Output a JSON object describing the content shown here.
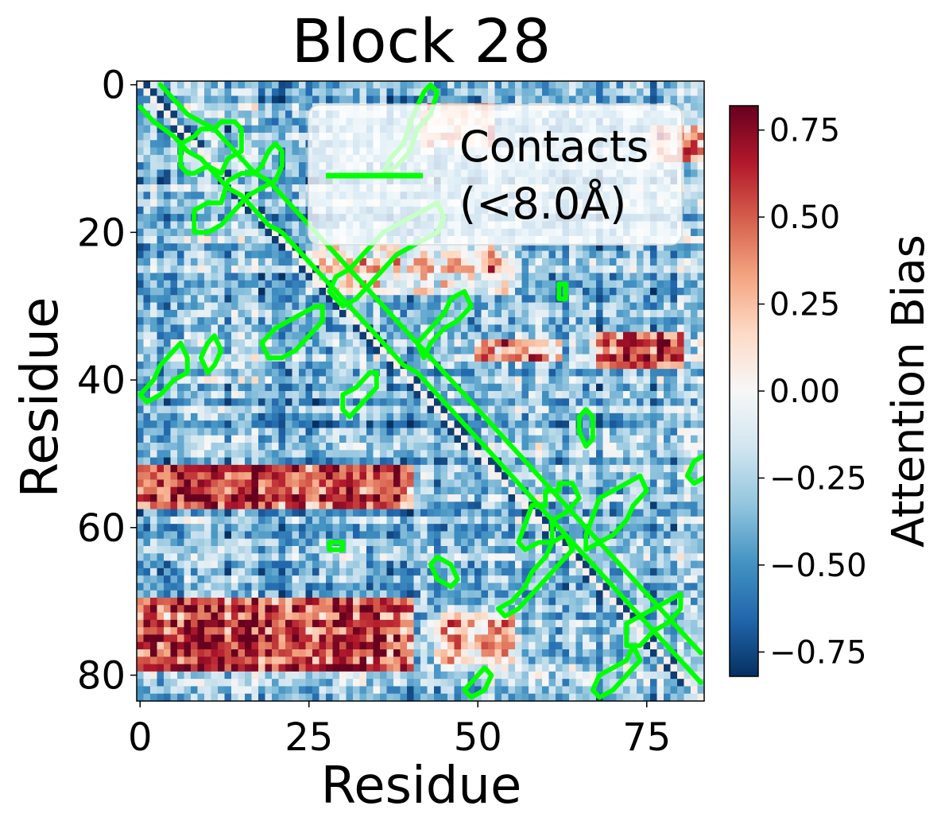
{
  "chart_data": {
    "type": "heatmap",
    "title": "Block 28",
    "xlabel": "Residue",
    "ylabel": "Residue",
    "n": 84,
    "x_ticks": [
      0,
      25,
      50,
      75
    ],
    "y_ticks": [
      0,
      20,
      40,
      60,
      80
    ],
    "x_tick_labels": [
      "0",
      "25",
      "50",
      "75"
    ],
    "y_tick_labels": [
      "0",
      "20",
      "40",
      "60",
      "80"
    ],
    "colorbar": {
      "label": "Attention Bias",
      "colormap": "RdBu_r",
      "vmin": -0.82,
      "vmax": 0.82,
      "ticks": [
        0.75,
        0.5,
        0.25,
        0.0,
        -0.25,
        -0.5,
        -0.75
      ],
      "tick_labels": [
        "0.75",
        "0.50",
        "0.25",
        "0.00",
        "−0.25",
        "−0.50",
        "−0.75"
      ]
    },
    "legend": {
      "placement": "top-right",
      "entries": [
        {
          "label_line1": "Contacts",
          "label_line2": "(<8.0Å)",
          "color": "#00ff00"
        }
      ]
    },
    "contact_color": "#00ff00",
    "contact_contours": [
      [
        [
          0,
          3
        ],
        [
          2,
          5
        ],
        [
          5,
          7
        ],
        [
          7,
          9
        ],
        [
          9,
          10
        ],
        [
          11,
          12
        ],
        [
          13,
          14
        ],
        [
          15,
          15
        ],
        [
          17,
          17
        ],
        [
          19,
          19
        ],
        [
          21,
          20
        ],
        [
          23,
          22
        ],
        [
          25,
          24
        ],
        [
          27,
          26
        ],
        [
          29,
          28
        ],
        [
          31,
          30
        ],
        [
          33,
          32
        ],
        [
          35,
          34
        ],
        [
          37,
          36
        ],
        [
          39,
          38
        ],
        [
          41,
          39
        ],
        [
          43,
          41
        ],
        [
          45,
          43
        ],
        [
          47,
          45
        ],
        [
          49,
          47
        ],
        [
          51,
          49
        ],
        [
          53,
          51
        ],
        [
          55,
          53
        ],
        [
          57,
          55
        ],
        [
          59,
          57
        ],
        [
          61,
          59
        ],
        [
          63,
          61
        ],
        [
          65,
          63
        ],
        [
          67,
          65
        ],
        [
          69,
          67
        ],
        [
          71,
          69
        ],
        [
          73,
          71
        ],
        [
          75,
          73
        ],
        [
          77,
          75
        ],
        [
          79,
          77
        ],
        [
          81,
          79
        ],
        [
          83,
          81
        ]
      ],
      [
        [
          3,
          0
        ],
        [
          5,
          2
        ],
        [
          7,
          4
        ],
        [
          9,
          5
        ],
        [
          11,
          6
        ],
        [
          13,
          8
        ],
        [
          15,
          10
        ],
        [
          17,
          12
        ],
        [
          19,
          13
        ],
        [
          21,
          15
        ],
        [
          23,
          17
        ],
        [
          25,
          19
        ],
        [
          27,
          21
        ],
        [
          29,
          23
        ],
        [
          31,
          25
        ],
        [
          33,
          27
        ],
        [
          35,
          29
        ],
        [
          37,
          31
        ],
        [
          39,
          33
        ],
        [
          41,
          35
        ],
        [
          43,
          37
        ],
        [
          45,
          39
        ],
        [
          47,
          41
        ],
        [
          49,
          43
        ],
        [
          51,
          45
        ],
        [
          53,
          47
        ],
        [
          55,
          49
        ],
        [
          57,
          51
        ],
        [
          59,
          53
        ],
        [
          61,
          55
        ],
        [
          63,
          57
        ],
        [
          65,
          59
        ],
        [
          67,
          61
        ],
        [
          69,
          63
        ],
        [
          71,
          65
        ],
        [
          73,
          67
        ],
        [
          75,
          69
        ],
        [
          77,
          71
        ],
        [
          79,
          73
        ],
        [
          81,
          75
        ],
        [
          83,
          77
        ]
      ],
      [
        [
          6,
          11
        ],
        [
          6,
          8
        ],
        [
          8,
          7
        ],
        [
          9,
          6
        ],
        [
          11,
          6
        ],
        [
          12,
          5
        ],
        [
          14,
          5
        ],
        [
          15,
          6
        ],
        [
          15,
          9
        ],
        [
          13,
          10
        ],
        [
          12,
          12
        ],
        [
          10,
          11
        ],
        [
          8,
          12
        ],
        [
          7,
          12
        ]
      ],
      [
        [
          8,
          20
        ],
        [
          8,
          17
        ],
        [
          10,
          16
        ],
        [
          12,
          16
        ],
        [
          13,
          13
        ],
        [
          15,
          12
        ],
        [
          17,
          12
        ],
        [
          18,
          11
        ],
        [
          19,
          9
        ],
        [
          20,
          8
        ],
        [
          21,
          9
        ],
        [
          21,
          11
        ],
        [
          20,
          13
        ],
        [
          18,
          14
        ],
        [
          16,
          15
        ],
        [
          14,
          17
        ],
        [
          12,
          19
        ],
        [
          10,
          20
        ]
      ],
      [
        [
          28,
          28
        ],
        [
          29,
          26
        ],
        [
          31,
          25
        ],
        [
          32,
          24
        ],
        [
          34,
          22
        ],
        [
          36,
          20
        ],
        [
          38,
          19
        ],
        [
          40,
          18
        ],
        [
          42,
          17
        ],
        [
          44,
          16
        ],
        [
          45,
          18
        ],
        [
          44,
          20
        ],
        [
          42,
          21
        ],
        [
          40,
          22
        ],
        [
          38,
          23
        ],
        [
          36,
          25
        ],
        [
          34,
          27
        ],
        [
          32,
          29
        ],
        [
          30,
          30
        ]
      ],
      [
        [
          36,
          12
        ],
        [
          37,
          10
        ],
        [
          39,
          8
        ],
        [
          40,
          5
        ],
        [
          41,
          3
        ],
        [
          42,
          1
        ],
        [
          43,
          0
        ],
        [
          44,
          1
        ],
        [
          43,
          4
        ],
        [
          41,
          6
        ],
        [
          40,
          9
        ],
        [
          38,
          11
        ]
      ],
      [
        [
          18,
          35
        ],
        [
          20,
          33
        ],
        [
          22,
          32
        ],
        [
          24,
          31
        ],
        [
          26,
          30
        ],
        [
          27,
          30
        ],
        [
          27,
          32
        ],
        [
          25,
          34
        ],
        [
          23,
          36
        ],
        [
          21,
          37
        ],
        [
          19,
          37
        ]
      ],
      [
        [
          41,
          35
        ],
        [
          43,
          33
        ],
        [
          45,
          31
        ],
        [
          46,
          29
        ],
        [
          48,
          28
        ],
        [
          49,
          30
        ],
        [
          47,
          32
        ],
        [
          45,
          33
        ],
        [
          43,
          35
        ],
        [
          42,
          37
        ]
      ],
      [
        [
          30,
          44
        ],
        [
          30,
          42
        ],
        [
          32,
          41
        ],
        [
          34,
          39
        ],
        [
          35,
          39
        ],
        [
          35,
          41
        ],
        [
          33,
          43
        ],
        [
          31,
          45
        ]
      ],
      [
        [
          0,
          42
        ],
        [
          2,
          40
        ],
        [
          3,
          38
        ],
        [
          5,
          36
        ],
        [
          6,
          35
        ],
        [
          7,
          37
        ],
        [
          7,
          39
        ],
        [
          5,
          40
        ],
        [
          3,
          42
        ],
        [
          1,
          43
        ]
      ],
      [
        [
          9,
          37
        ],
        [
          10,
          35
        ],
        [
          11,
          34
        ],
        [
          12,
          36
        ],
        [
          11,
          38
        ],
        [
          10,
          39
        ]
      ],
      [
        [
          58,
          57
        ],
        [
          60,
          57
        ],
        [
          60,
          55
        ],
        [
          62,
          55
        ],
        [
          62,
          54
        ],
        [
          64,
          54
        ],
        [
          65,
          56
        ],
        [
          63,
          58
        ],
        [
          61,
          59
        ],
        [
          61,
          62
        ],
        [
          59,
          62
        ],
        [
          57,
          63
        ],
        [
          56,
          62
        ]
      ],
      [
        [
          68,
          56
        ],
        [
          70,
          55
        ],
        [
          72,
          54
        ],
        [
          74,
          53
        ],
        [
          75,
          55
        ],
        [
          73,
          57
        ],
        [
          72,
          59
        ],
        [
          70,
          61
        ],
        [
          68,
          62
        ],
        [
          66,
          63
        ],
        [
          66,
          61
        ]
      ],
      [
        [
          53,
          71
        ],
        [
          55,
          70
        ],
        [
          57,
          68
        ],
        [
          58,
          66
        ],
        [
          60,
          64
        ],
        [
          61,
          62
        ],
        [
          63,
          61
        ],
        [
          64,
          63
        ],
        [
          62,
          65
        ],
        [
          60,
          67
        ],
        [
          58,
          69
        ],
        [
          56,
          71
        ],
        [
          54,
          72
        ]
      ],
      [
        [
          72,
          73
        ],
        [
          74,
          72
        ],
        [
          76,
          71
        ],
        [
          78,
          70
        ],
        [
          80,
          69
        ],
        [
          80,
          71
        ],
        [
          78,
          73
        ],
        [
          76,
          74
        ],
        [
          74,
          76
        ],
        [
          72,
          76
        ]
      ],
      [
        [
          67,
          82
        ],
        [
          68,
          80
        ],
        [
          70,
          79
        ],
        [
          72,
          78
        ],
        [
          73,
          76
        ],
        [
          74,
          78
        ],
        [
          72,
          80
        ],
        [
          70,
          82
        ],
        [
          68,
          83
        ]
      ],
      [
        [
          48,
          82
        ],
        [
          50,
          80
        ],
        [
          51,
          79
        ],
        [
          52,
          80
        ],
        [
          51,
          82
        ],
        [
          49,
          83
        ]
      ],
      [
        [
          43,
          65
        ],
        [
          44,
          64
        ],
        [
          46,
          65
        ],
        [
          47,
          67
        ],
        [
          46,
          68
        ],
        [
          44,
          67
        ]
      ],
      [
        [
          65,
          45
        ],
        [
          66,
          44
        ],
        [
          67,
          45
        ],
        [
          67,
          48
        ],
        [
          66,
          49
        ],
        [
          65,
          47
        ]
      ],
      [
        [
          81,
          53
        ],
        [
          82,
          51
        ],
        [
          84,
          50
        ],
        [
          84,
          53
        ],
        [
          82,
          54
        ]
      ],
      [
        [
          62,
          27
        ],
        [
          63,
          27
        ],
        [
          63,
          29
        ],
        [
          62,
          29
        ]
      ],
      [
        [
          28,
          62
        ],
        [
          30,
          62
        ],
        [
          30,
          63
        ],
        [
          28,
          63
        ]
      ]
    ],
    "hot_spots": [
      {
        "x": [
          0,
          40
        ],
        "y": [
          52,
          57
        ],
        "value": 0.5
      },
      {
        "x": [
          0,
          40
        ],
        "y": [
          70,
          79
        ],
        "value": 0.55
      },
      {
        "x": [
          44,
          55
        ],
        "y": [
          72,
          78
        ],
        "value": 0.25
      },
      {
        "x": [
          68,
          80
        ],
        "y": [
          34,
          38
        ],
        "value": 0.45
      },
      {
        "x": [
          50,
          62
        ],
        "y": [
          35,
          37
        ],
        "value": 0.25
      },
      {
        "x": [
          42,
          52
        ],
        "y": [
          3,
          8
        ],
        "value": 0.2
      },
      {
        "x": [
          76,
          84
        ],
        "y": [
          6,
          10
        ],
        "value": 0.25
      },
      {
        "x": [
          25,
          55
        ],
        "y": [
          22,
          28
        ],
        "value": 0.1
      }
    ]
  }
}
